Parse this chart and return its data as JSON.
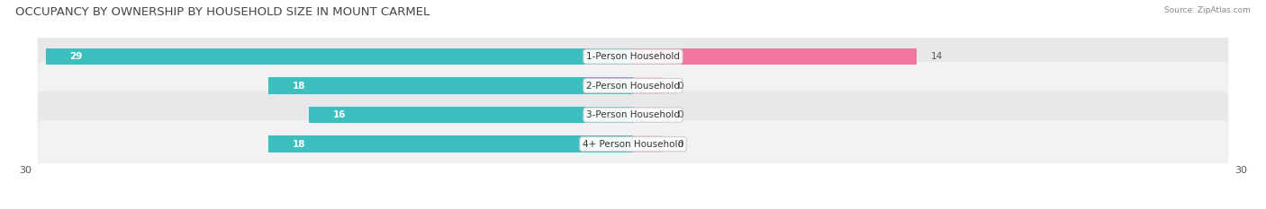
{
  "title": "OCCUPANCY BY OWNERSHIP BY HOUSEHOLD SIZE IN MOUNT CARMEL",
  "source": "Source: ZipAtlas.com",
  "categories": [
    "1-Person Household",
    "2-Person Household",
    "3-Person Household",
    "4+ Person Household"
  ],
  "owner_values": [
    29,
    18,
    16,
    18
  ],
  "renter_values": [
    14,
    0,
    0,
    0
  ],
  "owner_color": "#3DBFBF",
  "renter_color": "#F075A0",
  "renter_color_light": "#F8B8CB",
  "row_bg_colors": [
    "#E8E8EA",
    "#F2F2F4",
    "#E8E8EA",
    "#F2F2F4"
  ],
  "x_max": 30,
  "x_min": -30,
  "title_fontsize": 9.5,
  "value_label_fontsize": 7.5,
  "legend_fontsize": 8,
  "axis_label_fontsize": 8,
  "category_label_fontsize": 7.5,
  "source_fontsize": 6.5
}
